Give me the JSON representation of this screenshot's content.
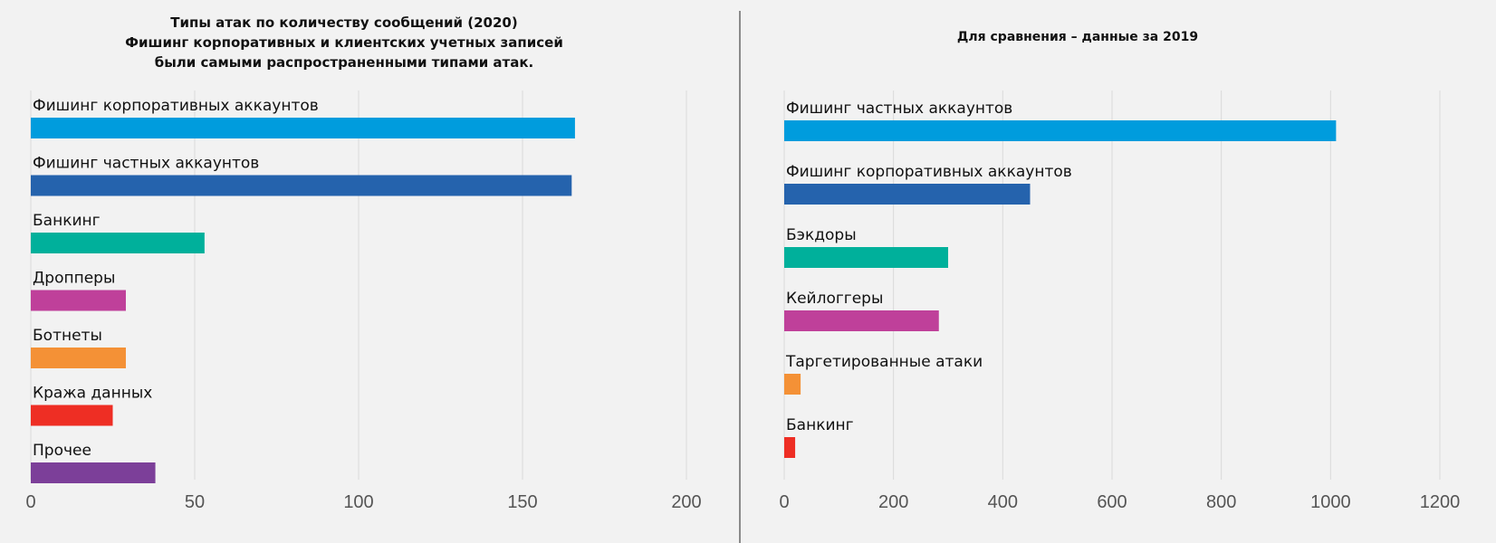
{
  "chart_data": [
    {
      "type": "bar",
      "orientation": "horizontal",
      "title": "Типы атак по количеству сообщений (2020)\nФишинг корпоративных и клиентских учетных записей\nбыли самыми распространенными типами атак.",
      "categories": [
        "Фишинг корпоративных аккаунтов",
        "Фишинг частных аккаунтов",
        "Банкинг",
        "Дропперы",
        "Ботнеты",
        "Кража данных",
        "Прочее"
      ],
      "values": [
        166,
        165,
        53,
        29,
        29,
        25,
        38
      ],
      "colors": [
        "#009cdd",
        "#2563ad",
        "#00b09b",
        "#bf409a",
        "#f49136",
        "#ee2e24",
        "#7c3f99"
      ],
      "xlim": [
        0,
        200
      ],
      "xticks": [
        0,
        50,
        100,
        150,
        200
      ],
      "grid": true,
      "legend": "none"
    },
    {
      "type": "bar",
      "orientation": "horizontal",
      "title": "Для сравнения – данные за 2019",
      "categories": [
        "Фишинг частных аккаунтов",
        "Фишинг корпоративных  аккаунтов",
        "Бэкдоры",
        "Кейлоггеры",
        "Таргетированные атаки",
        "Банкинг"
      ],
      "values": [
        1010,
        450,
        300,
        283,
        30,
        20
      ],
      "colors": [
        "#009cdd",
        "#2563ad",
        "#00b09b",
        "#bf409a",
        "#f49136",
        "#ee2e24"
      ],
      "xlim": [
        0,
        1200
      ],
      "xticks": [
        0,
        200,
        400,
        600,
        800,
        1000,
        1200
      ],
      "grid": true,
      "legend": "none"
    }
  ]
}
